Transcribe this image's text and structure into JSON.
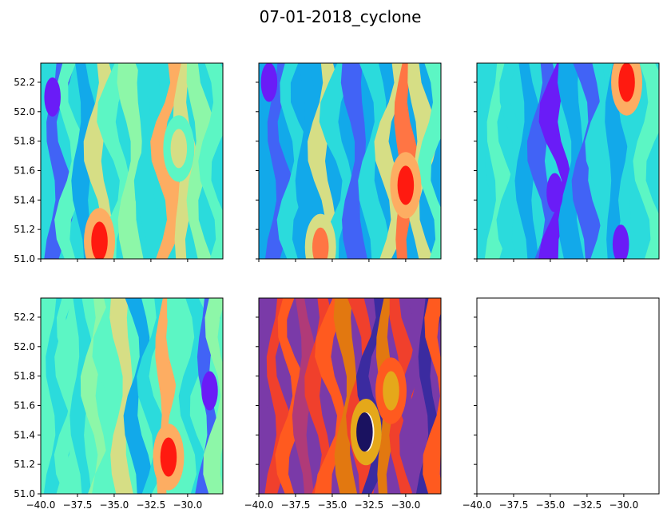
{
  "figure": {
    "suptitle": "07-01-2018_cyclone"
  },
  "chart_data": [
    {
      "type": "heatmap",
      "subtype": "filled-contour",
      "panel": "row1-col1",
      "colormap": "rainbow",
      "xlim": [
        -40.0,
        -27.6
      ],
      "ylim": [
        51.0,
        52.33
      ],
      "xticks": [
        -40.0,
        -37.5,
        -35.0,
        -32.5,
        -30.0
      ],
      "xtick_labels": [],
      "yticks": [
        51.0,
        51.2,
        51.4,
        51.6,
        51.8,
        52.0,
        52.2
      ],
      "ytick_labels": [
        "51.0",
        "51.2",
        "51.4",
        "51.6",
        "51.8",
        "52.0",
        "52.2"
      ],
      "grid": false,
      "bands": [
        {
          "x": -39.5,
          "level": 3
        },
        {
          "x": -38.8,
          "level": 1
        },
        {
          "x": -37.9,
          "level": 4
        },
        {
          "x": -37.0,
          "level": 2
        },
        {
          "x": -36.0,
          "level": 6
        },
        {
          "x": -34.9,
          "level": 4
        },
        {
          "x": -33.8,
          "level": 5
        },
        {
          "x": -32.6,
          "level": 3
        },
        {
          "x": -31.4,
          "level": 7
        },
        {
          "x": -30.2,
          "level": 6
        },
        {
          "x": -29.2,
          "level": 5
        },
        {
          "x": -28.2,
          "level": 4
        }
      ],
      "blobs": [
        {
          "x": -36.0,
          "y": 51.12,
          "level": 9
        },
        {
          "x": -30.6,
          "y": 51.75,
          "level": 6
        },
        {
          "x": -39.2,
          "y": 52.1,
          "level": 0
        }
      ]
    },
    {
      "type": "heatmap",
      "subtype": "filled-contour",
      "panel": "row1-col2",
      "colormap": "rainbow",
      "xlim": [
        -40.0,
        -27.6
      ],
      "ylim": [
        51.0,
        52.33
      ],
      "xticks": [
        -40.0,
        -37.5,
        -35.0,
        -32.5,
        -30.0
      ],
      "xtick_labels": [],
      "yticks": [
        51.0,
        51.2,
        51.4,
        51.6,
        51.8,
        52.0,
        52.2
      ],
      "ytick_labels": [],
      "grid": false,
      "bands": [
        {
          "x": -39.5,
          "level": 2
        },
        {
          "x": -38.6,
          "level": 1
        },
        {
          "x": -37.6,
          "level": 3
        },
        {
          "x": -36.6,
          "level": 2
        },
        {
          "x": -35.6,
          "level": 6
        },
        {
          "x": -34.6,
          "level": 3
        },
        {
          "x": -33.4,
          "level": 1
        },
        {
          "x": -32.2,
          "level": 3
        },
        {
          "x": -31.0,
          "level": 6
        },
        {
          "x": -30.0,
          "level": 8
        },
        {
          "x": -29.0,
          "level": 6
        },
        {
          "x": -28.1,
          "level": 4
        }
      ],
      "blobs": [
        {
          "x": -30.0,
          "y": 51.5,
          "level": 9
        },
        {
          "x": -35.8,
          "y": 51.08,
          "level": 8
        },
        {
          "x": -39.3,
          "y": 52.2,
          "level": 0
        }
      ]
    },
    {
      "type": "heatmap",
      "subtype": "filled-contour",
      "panel": "row1-col3",
      "colormap": "rainbow",
      "xlim": [
        -40.0,
        -27.6
      ],
      "ylim": [
        51.0,
        52.33
      ],
      "xticks": [
        -40.0,
        -37.5,
        -35.0,
        -32.5,
        -30.0
      ],
      "xtick_labels": [],
      "yticks": [
        51.0,
        51.2,
        51.4,
        51.6,
        51.8,
        52.0,
        52.2
      ],
      "ytick_labels": [],
      "grid": false,
      "bands": [
        {
          "x": -39.5,
          "level": 3
        },
        {
          "x": -38.5,
          "level": 4
        },
        {
          "x": -37.5,
          "level": 3
        },
        {
          "x": -36.5,
          "level": 2
        },
        {
          "x": -35.5,
          "level": 1
        },
        {
          "x": -34.5,
          "level": 0
        },
        {
          "x": -33.5,
          "level": 2
        },
        {
          "x": -32.5,
          "level": 1
        },
        {
          "x": -31.5,
          "level": 3
        },
        {
          "x": -30.5,
          "level": 2
        },
        {
          "x": -29.5,
          "level": 3
        },
        {
          "x": -28.3,
          "level": 4
        }
      ],
      "blobs": [
        {
          "x": -29.8,
          "y": 52.2,
          "level": 9
        },
        {
          "x": -34.7,
          "y": 51.45,
          "level": 0
        },
        {
          "x": -30.2,
          "y": 51.1,
          "level": 0
        }
      ]
    },
    {
      "type": "heatmap",
      "subtype": "filled-contour",
      "panel": "row2-col1",
      "colormap": "rainbow",
      "xlim": [
        -40.0,
        -27.6
      ],
      "ylim": [
        51.0,
        52.33
      ],
      "xticks": [
        -40.0,
        -37.5,
        -35.0,
        -32.5,
        -30.0
      ],
      "xtick_labels": [
        "−40.0",
        "−37.5",
        "−35.0",
        "−32.5",
        "−30.0"
      ],
      "yticks": [
        51.0,
        51.2,
        51.4,
        51.6,
        51.8,
        52.0,
        52.2
      ],
      "ytick_labels": [
        "51.0",
        "51.2",
        "51.4",
        "51.6",
        "51.8",
        "52.0",
        "52.2"
      ],
      "grid": false,
      "bands": [
        {
          "x": -39.6,
          "level": 4
        },
        {
          "x": -38.9,
          "level": 3
        },
        {
          "x": -38.0,
          "level": 4
        },
        {
          "x": -37.2,
          "level": 3
        },
        {
          "x": -36.3,
          "level": 5
        },
        {
          "x": -35.3,
          "level": 4
        },
        {
          "x": -34.4,
          "level": 6
        },
        {
          "x": -33.4,
          "level": 2
        },
        {
          "x": -32.4,
          "level": 3
        },
        {
          "x": -31.5,
          "level": 7
        },
        {
          "x": -30.6,
          "level": 4
        },
        {
          "x": -29.6,
          "level": 3
        },
        {
          "x": -28.6,
          "level": 1
        },
        {
          "x": -27.9,
          "level": 5
        }
      ],
      "blobs": [
        {
          "x": -31.3,
          "y": 51.25,
          "level": 9
        },
        {
          "x": -28.5,
          "y": 51.7,
          "level": 0
        }
      ]
    },
    {
      "type": "heatmap",
      "subtype": "filled-contour",
      "panel": "row2-col2",
      "colormap": "CMRmap",
      "xlim": [
        -40.0,
        -27.6
      ],
      "ylim": [
        51.0,
        52.33
      ],
      "xticks": [
        -40.0,
        -37.5,
        -35.0,
        -32.5,
        -30.0
      ],
      "xtick_labels": [
        "−40.0",
        "−37.5",
        "−35.0",
        "−32.5",
        "−30.0"
      ],
      "yticks": [
        51.0,
        51.2,
        51.4,
        51.6,
        51.8,
        52.0,
        52.2
      ],
      "ytick_labels": [],
      "grid": false,
      "bands": [
        {
          "x": -39.5,
          "level": 2
        },
        {
          "x": -38.7,
          "level": 4
        },
        {
          "x": -37.8,
          "level": 5
        },
        {
          "x": -36.9,
          "level": 3
        },
        {
          "x": -35.9,
          "level": 4
        },
        {
          "x": -35.0,
          "level": 5
        },
        {
          "x": -34.0,
          "level": 6
        },
        {
          "x": -33.1,
          "level": 4
        },
        {
          "x": -32.3,
          "level": 1
        },
        {
          "x": -31.3,
          "level": 6
        },
        {
          "x": -30.3,
          "level": 4
        },
        {
          "x": -29.4,
          "level": 2
        },
        {
          "x": -28.4,
          "level": 1
        },
        {
          "x": -27.8,
          "level": 5
        }
      ],
      "blobs": [
        {
          "x": -32.7,
          "y": 51.42,
          "level": 9
        },
        {
          "x": -32.8,
          "y": 51.42,
          "level": 0
        },
        {
          "x": -31.0,
          "y": 51.7,
          "level": 7
        }
      ]
    },
    {
      "type": "heatmap",
      "subtype": "empty",
      "panel": "row2-col3",
      "xlim": [
        -40.0,
        -27.6
      ],
      "ylim": [
        51.0,
        52.33
      ],
      "xticks": [
        -40.0,
        -37.5,
        -35.0,
        -32.5,
        -30.0
      ],
      "xtick_labels": [
        "−40.0",
        "−37.5",
        "−35.0",
        "−32.5",
        "−30.0"
      ],
      "yticks": [
        51.0,
        51.2,
        51.4,
        51.6,
        51.8,
        52.0,
        52.2
      ],
      "ytick_labels": [],
      "grid": false,
      "bands": [],
      "blobs": []
    }
  ],
  "colormaps": {
    "rainbow": [
      "#6a1cf7",
      "#4163f6",
      "#12a9ea",
      "#2bdbdc",
      "#5cf6c4",
      "#8df7a8",
      "#d6de85",
      "#fdad62",
      "#ff7544",
      "#ff1a10"
    ],
    "CMRmap": [
      "#1a1260",
      "#3b2ba0",
      "#7a3aa8",
      "#b03a78",
      "#f0402c",
      "#ff5a1f",
      "#e27810",
      "#e5a81a",
      "#e8d26a",
      "#fff8e8"
    ]
  }
}
